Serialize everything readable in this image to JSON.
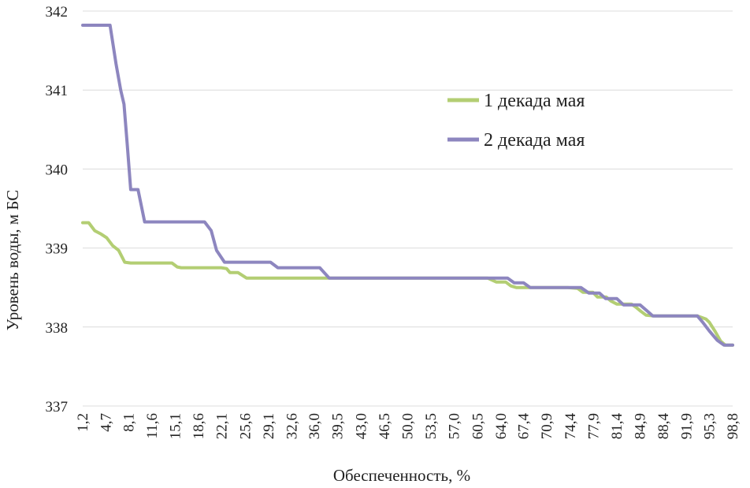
{
  "chart_data": {
    "type": "line",
    "title": "",
    "xlabel": "Обеспеченность, %",
    "ylabel": "Уровень воды, м БС",
    "ylim": [
      337,
      342
    ],
    "yticks": [
      "342",
      "341",
      "340",
      "339",
      "338",
      "337"
    ],
    "ytick_values": [
      342,
      341,
      340,
      339,
      338,
      337
    ],
    "xlim": [
      1.2,
      98.8
    ],
    "xticks": [
      "1,2",
      "4,7",
      "8,1",
      "11,6",
      "15,1",
      "18,6",
      "22,1",
      "25,6",
      "29,1",
      "32,6",
      "36,0",
      "39,5",
      "43,0",
      "46,5",
      "50,0",
      "53,5",
      "57,0",
      "60,5",
      "64,0",
      "67,4",
      "70,9",
      "74,4",
      "77,9",
      "81,4",
      "84,9",
      "88,4",
      "91,9",
      "95,3",
      "98,8"
    ],
    "xtick_values": [
      1.2,
      4.7,
      8.1,
      11.6,
      15.1,
      18.6,
      22.1,
      25.6,
      29.1,
      32.6,
      36.0,
      39.5,
      43.0,
      46.5,
      50.0,
      53.5,
      57.0,
      60.5,
      64.0,
      67.4,
      70.9,
      74.4,
      77.9,
      81.4,
      84.9,
      88.4,
      91.9,
      95.3,
      98.8
    ],
    "grid": "horizontal",
    "legend_position": "right",
    "series": [
      {
        "name": "1 декада мая",
        "color": "#b3ce73",
        "points": [
          [
            1.2,
            339.32
          ],
          [
            2.1,
            339.32
          ],
          [
            3.0,
            339.22
          ],
          [
            3.9,
            339.18
          ],
          [
            4.8,
            339.13
          ],
          [
            5.7,
            339.03
          ],
          [
            6.6,
            338.97
          ],
          [
            7.5,
            338.82
          ],
          [
            8.4,
            338.81
          ],
          [
            9.5,
            338.81
          ],
          [
            11.0,
            338.81
          ],
          [
            12.5,
            338.81
          ],
          [
            13.8,
            338.81
          ],
          [
            14.6,
            338.81
          ],
          [
            15.4,
            338.76
          ],
          [
            16.0,
            338.75
          ],
          [
            17.5,
            338.75
          ],
          [
            19.0,
            338.75
          ],
          [
            20.5,
            338.75
          ],
          [
            22.0,
            338.75
          ],
          [
            22.8,
            338.74
          ],
          [
            23.3,
            338.69
          ],
          [
            24.5,
            338.69
          ],
          [
            25.8,
            338.62
          ],
          [
            27.0,
            338.62
          ],
          [
            30.0,
            338.62
          ],
          [
            36.0,
            338.62
          ],
          [
            39.5,
            338.62
          ],
          [
            45.0,
            338.62
          ],
          [
            50.0,
            338.62
          ],
          [
            55.0,
            338.62
          ],
          [
            60.0,
            338.62
          ],
          [
            62.0,
            338.62
          ],
          [
            63.3,
            338.57
          ],
          [
            64.7,
            338.57
          ],
          [
            65.5,
            338.52
          ],
          [
            66.3,
            338.5
          ],
          [
            68.0,
            338.5
          ],
          [
            70.0,
            338.5
          ],
          [
            72.0,
            338.5
          ],
          [
            74.0,
            338.5
          ],
          [
            75.5,
            338.49
          ],
          [
            76.3,
            338.44
          ],
          [
            77.8,
            338.44
          ],
          [
            78.5,
            338.38
          ],
          [
            79.8,
            338.38
          ],
          [
            80.5,
            338.33
          ],
          [
            81.4,
            338.29
          ],
          [
            82.5,
            338.29
          ],
          [
            83.6,
            338.29
          ],
          [
            84.3,
            338.25
          ],
          [
            85.0,
            338.2
          ],
          [
            85.8,
            338.15
          ],
          [
            87.0,
            338.14
          ],
          [
            90.0,
            338.14
          ],
          [
            93.5,
            338.14
          ],
          [
            94.8,
            338.1
          ],
          [
            95.3,
            338.06
          ],
          [
            96.2,
            337.94
          ],
          [
            97.0,
            337.82
          ],
          [
            97.7,
            337.77
          ],
          [
            98.8,
            337.77
          ]
        ]
      },
      {
        "name": "2 декада мая",
        "color": "#8d86bf",
        "points": [
          [
            1.2,
            341.82
          ],
          [
            2.5,
            341.82
          ],
          [
            4.0,
            341.82
          ],
          [
            5.3,
            341.82
          ],
          [
            6.2,
            341.33
          ],
          [
            6.9,
            341.0
          ],
          [
            7.4,
            340.82
          ],
          [
            7.9,
            340.3
          ],
          [
            8.4,
            339.74
          ],
          [
            9.5,
            339.74
          ],
          [
            10.5,
            339.33
          ],
          [
            12.0,
            339.33
          ],
          [
            15.0,
            339.33
          ],
          [
            18.6,
            339.33
          ],
          [
            19.5,
            339.33
          ],
          [
            20.5,
            339.22
          ],
          [
            21.3,
            338.97
          ],
          [
            22.5,
            338.82
          ],
          [
            24.0,
            338.82
          ],
          [
            26.0,
            338.82
          ],
          [
            29.4,
            338.82
          ],
          [
            30.5,
            338.75
          ],
          [
            33.0,
            338.75
          ],
          [
            36.0,
            338.75
          ],
          [
            36.8,
            338.75
          ],
          [
            38.2,
            338.62
          ],
          [
            40.0,
            338.62
          ],
          [
            45.0,
            338.62
          ],
          [
            50.0,
            338.62
          ],
          [
            55.0,
            338.62
          ],
          [
            60.0,
            338.62
          ],
          [
            64.0,
            338.62
          ],
          [
            65.0,
            338.62
          ],
          [
            66.0,
            338.56
          ],
          [
            67.4,
            338.56
          ],
          [
            68.4,
            338.5
          ],
          [
            70.0,
            338.5
          ],
          [
            72.0,
            338.5
          ],
          [
            74.0,
            338.5
          ],
          [
            76.0,
            338.5
          ],
          [
            77.2,
            338.43
          ],
          [
            78.8,
            338.43
          ],
          [
            79.7,
            338.36
          ],
          [
            80.5,
            338.36
          ],
          [
            81.4,
            338.36
          ],
          [
            82.4,
            338.28
          ],
          [
            83.5,
            338.28
          ],
          [
            84.9,
            338.28
          ],
          [
            86.0,
            338.2
          ],
          [
            86.8,
            338.14
          ],
          [
            88.0,
            338.14
          ],
          [
            90.0,
            338.14
          ],
          [
            92.0,
            338.14
          ],
          [
            93.5,
            338.14
          ],
          [
            94.3,
            338.06
          ],
          [
            95.3,
            337.95
          ],
          [
            96.5,
            337.83
          ],
          [
            97.5,
            337.77
          ],
          [
            98.8,
            337.77
          ]
        ]
      }
    ]
  }
}
